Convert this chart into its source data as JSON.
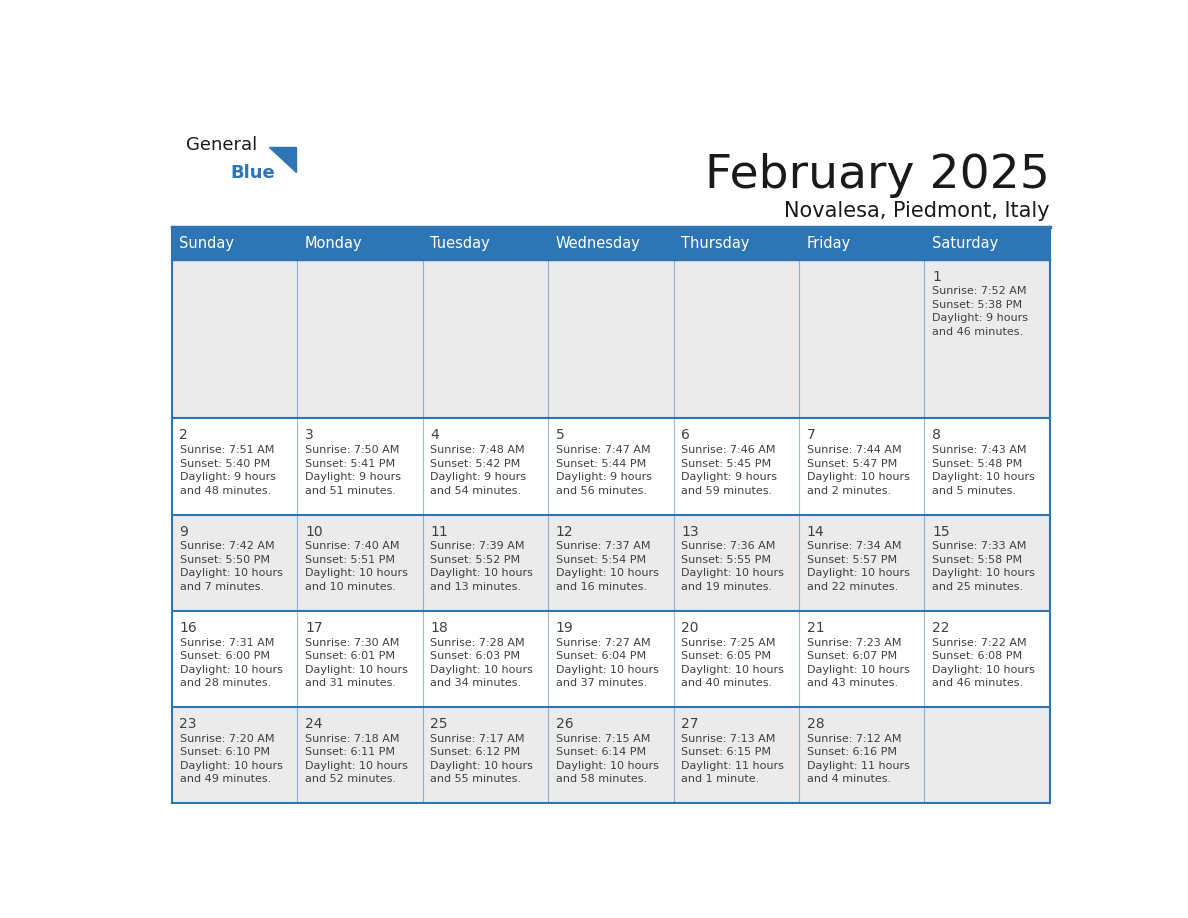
{
  "title": "February 2025",
  "subtitle": "Novalesa, Piedmont, Italy",
  "header_bg": "#2E75B6",
  "header_text_color": "#FFFFFF",
  "cell_bg_light": "#EBEBEB",
  "cell_bg_white": "#FFFFFF",
  "border_color": "#2E75B6",
  "border_color_light": "#9DC3E6",
  "text_color": "#404040",
  "day_headers": [
    "Sunday",
    "Monday",
    "Tuesday",
    "Wednesday",
    "Thursday",
    "Friday",
    "Saturday"
  ],
  "weeks": [
    [
      {
        "day": "",
        "info": ""
      },
      {
        "day": "",
        "info": ""
      },
      {
        "day": "",
        "info": ""
      },
      {
        "day": "",
        "info": ""
      },
      {
        "day": "",
        "info": ""
      },
      {
        "day": "",
        "info": ""
      },
      {
        "day": "1",
        "info": "Sunrise: 7:52 AM\nSunset: 5:38 PM\nDaylight: 9 hours\nand 46 minutes."
      }
    ],
    [
      {
        "day": "2",
        "info": "Sunrise: 7:51 AM\nSunset: 5:40 PM\nDaylight: 9 hours\nand 48 minutes."
      },
      {
        "day": "3",
        "info": "Sunrise: 7:50 AM\nSunset: 5:41 PM\nDaylight: 9 hours\nand 51 minutes."
      },
      {
        "day": "4",
        "info": "Sunrise: 7:48 AM\nSunset: 5:42 PM\nDaylight: 9 hours\nand 54 minutes."
      },
      {
        "day": "5",
        "info": "Sunrise: 7:47 AM\nSunset: 5:44 PM\nDaylight: 9 hours\nand 56 minutes."
      },
      {
        "day": "6",
        "info": "Sunrise: 7:46 AM\nSunset: 5:45 PM\nDaylight: 9 hours\nand 59 minutes."
      },
      {
        "day": "7",
        "info": "Sunrise: 7:44 AM\nSunset: 5:47 PM\nDaylight: 10 hours\nand 2 minutes."
      },
      {
        "day": "8",
        "info": "Sunrise: 7:43 AM\nSunset: 5:48 PM\nDaylight: 10 hours\nand 5 minutes."
      }
    ],
    [
      {
        "day": "9",
        "info": "Sunrise: 7:42 AM\nSunset: 5:50 PM\nDaylight: 10 hours\nand 7 minutes."
      },
      {
        "day": "10",
        "info": "Sunrise: 7:40 AM\nSunset: 5:51 PM\nDaylight: 10 hours\nand 10 minutes."
      },
      {
        "day": "11",
        "info": "Sunrise: 7:39 AM\nSunset: 5:52 PM\nDaylight: 10 hours\nand 13 minutes."
      },
      {
        "day": "12",
        "info": "Sunrise: 7:37 AM\nSunset: 5:54 PM\nDaylight: 10 hours\nand 16 minutes."
      },
      {
        "day": "13",
        "info": "Sunrise: 7:36 AM\nSunset: 5:55 PM\nDaylight: 10 hours\nand 19 minutes."
      },
      {
        "day": "14",
        "info": "Sunrise: 7:34 AM\nSunset: 5:57 PM\nDaylight: 10 hours\nand 22 minutes."
      },
      {
        "day": "15",
        "info": "Sunrise: 7:33 AM\nSunset: 5:58 PM\nDaylight: 10 hours\nand 25 minutes."
      }
    ],
    [
      {
        "day": "16",
        "info": "Sunrise: 7:31 AM\nSunset: 6:00 PM\nDaylight: 10 hours\nand 28 minutes."
      },
      {
        "day": "17",
        "info": "Sunrise: 7:30 AM\nSunset: 6:01 PM\nDaylight: 10 hours\nand 31 minutes."
      },
      {
        "day": "18",
        "info": "Sunrise: 7:28 AM\nSunset: 6:03 PM\nDaylight: 10 hours\nand 34 minutes."
      },
      {
        "day": "19",
        "info": "Sunrise: 7:27 AM\nSunset: 6:04 PM\nDaylight: 10 hours\nand 37 minutes."
      },
      {
        "day": "20",
        "info": "Sunrise: 7:25 AM\nSunset: 6:05 PM\nDaylight: 10 hours\nand 40 minutes."
      },
      {
        "day": "21",
        "info": "Sunrise: 7:23 AM\nSunset: 6:07 PM\nDaylight: 10 hours\nand 43 minutes."
      },
      {
        "day": "22",
        "info": "Sunrise: 7:22 AM\nSunset: 6:08 PM\nDaylight: 10 hours\nand 46 minutes."
      }
    ],
    [
      {
        "day": "23",
        "info": "Sunrise: 7:20 AM\nSunset: 6:10 PM\nDaylight: 10 hours\nand 49 minutes."
      },
      {
        "day": "24",
        "info": "Sunrise: 7:18 AM\nSunset: 6:11 PM\nDaylight: 10 hours\nand 52 minutes."
      },
      {
        "day": "25",
        "info": "Sunrise: 7:17 AM\nSunset: 6:12 PM\nDaylight: 10 hours\nand 55 minutes."
      },
      {
        "day": "26",
        "info": "Sunrise: 7:15 AM\nSunset: 6:14 PM\nDaylight: 10 hours\nand 58 minutes."
      },
      {
        "day": "27",
        "info": "Sunrise: 7:13 AM\nSunset: 6:15 PM\nDaylight: 11 hours\nand 1 minute."
      },
      {
        "day": "28",
        "info": "Sunrise: 7:12 AM\nSunset: 6:16 PM\nDaylight: 11 hours\nand 4 minutes."
      },
      {
        "day": "",
        "info": ""
      }
    ]
  ],
  "logo_text_general": "General",
  "logo_text_blue": "Blue",
  "logo_color_general": "#1A1A1A",
  "logo_color_blue": "#2E75B6",
  "logo_triangle_color": "#2E75B6",
  "fig_width": 11.88,
  "fig_height": 9.18,
  "dpi": 100
}
